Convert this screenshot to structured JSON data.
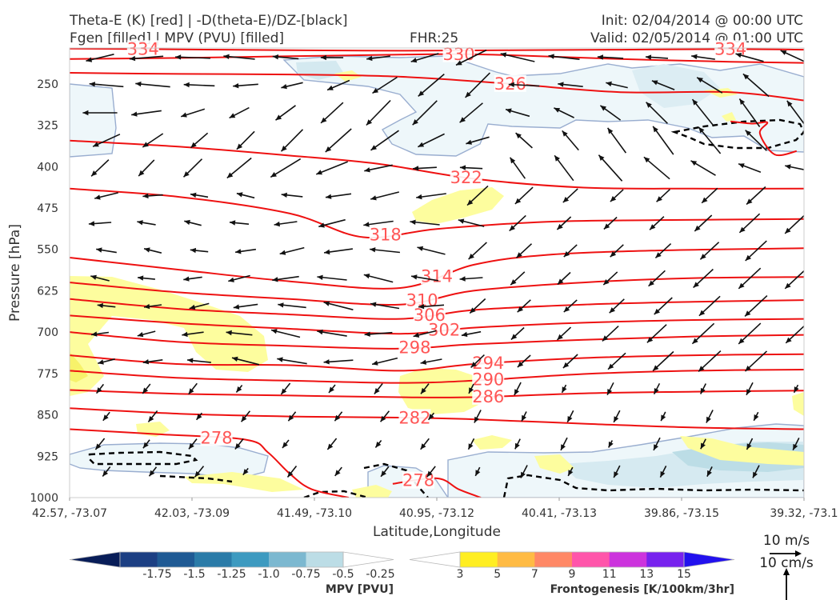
{
  "header": {
    "title_line1": "Theta-E (K) [red] | -D(theta-E)/DZ-[black]",
    "title_line2": "Fgen [filled] | MPV (PVU) [filled]",
    "fhr": "FHR:25",
    "init": "Init: 02/04/2014 @ 00:00 UTC",
    "valid": "Valid: 02/05/2014 @ 01:00 UTC"
  },
  "chart_data": {
    "type": "cross-section",
    "xlabel": "Latitude,Longitude",
    "ylabel": "Pressure [hPa]",
    "x_ticks": [
      "42.57, -73.07",
      "42.03, -73.09",
      "41.49, -73.10",
      "40.95, -73.12",
      "40.41, -73.13",
      "39.86, -73.15",
      "39.32, -73.1"
    ],
    "y_ticks": [
      250,
      325,
      400,
      475,
      550,
      625,
      700,
      775,
      850,
      925,
      1000
    ],
    "ylim": [
      1000,
      185
    ],
    "y_scale": "pressure (inverted)",
    "grid": false,
    "theta_e_contours": [
      {
        "label": "334",
        "points": [
          [
            0,
            186
          ],
          [
            0.1,
            187
          ],
          [
            0.3,
            189
          ],
          [
            0.45,
            190
          ],
          [
            0.6,
            189
          ],
          [
            0.75,
            188
          ],
          [
            0.9,
            187
          ],
          [
            1,
            188
          ]
        ]
      },
      {
        "label": "330",
        "points": [
          [
            0,
            205
          ],
          [
            0.15,
            203
          ],
          [
            0.3,
            200
          ],
          [
            0.45,
            197
          ],
          [
            0.52,
            196
          ],
          [
            0.6,
            198
          ],
          [
            0.75,
            205
          ],
          [
            0.9,
            210
          ],
          [
            1,
            212
          ]
        ]
      },
      {
        "label": "326",
        "points": [
          [
            0,
            230
          ],
          [
            0.15,
            232
          ],
          [
            0.3,
            233
          ],
          [
            0.45,
            237
          ],
          [
            0.6,
            250
          ],
          [
            0.75,
            265
          ],
          [
            0.9,
            265
          ],
          [
            1,
            280
          ]
        ]
      },
      {
        "label": "322",
        "points": [
          [
            0,
            353
          ],
          [
            0.15,
            364
          ],
          [
            0.3,
            380
          ],
          [
            0.42,
            395
          ],
          [
            0.55,
            422
          ],
          [
            0.7,
            438
          ],
          [
            0.85,
            440
          ],
          [
            1,
            440
          ]
        ]
      },
      {
        "label": "318",
        "points": [
          [
            0,
            440
          ],
          [
            0.15,
            455
          ],
          [
            0.3,
            485
          ],
          [
            0.4,
            528
          ],
          [
            0.5,
            513
          ],
          [
            0.65,
            500
          ],
          [
            0.8,
            497
          ],
          [
            1,
            495
          ]
        ]
      },
      {
        "label": "314",
        "points": [
          [
            0,
            565
          ],
          [
            0.15,
            587
          ],
          [
            0.3,
            608
          ],
          [
            0.45,
            620
          ],
          [
            0.55,
            578
          ],
          [
            0.65,
            560
          ],
          [
            0.8,
            552
          ],
          [
            1,
            548
          ]
        ]
      },
      {
        "label": "310",
        "points": [
          [
            0,
            610
          ],
          [
            0.15,
            628
          ],
          [
            0.3,
            640
          ],
          [
            0.45,
            650
          ],
          [
            0.55,
            625
          ],
          [
            0.7,
            610
          ],
          [
            0.85,
            602
          ],
          [
            1,
            600
          ]
        ]
      },
      {
        "label": "306",
        "points": [
          [
            0,
            640
          ],
          [
            0.15,
            658
          ],
          [
            0.3,
            668
          ],
          [
            0.45,
            676
          ],
          [
            0.55,
            660
          ],
          [
            0.7,
            650
          ],
          [
            0.85,
            645
          ],
          [
            1,
            642
          ]
        ]
      },
      {
        "label": "302",
        "points": [
          [
            0,
            670
          ],
          [
            0.15,
            684
          ],
          [
            0.3,
            694
          ],
          [
            0.45,
            703
          ],
          [
            0.55,
            692
          ],
          [
            0.7,
            683
          ],
          [
            0.85,
            678
          ],
          [
            1,
            676
          ]
        ]
      },
      {
        "label": "298",
        "points": [
          [
            0,
            700
          ],
          [
            0.15,
            718
          ],
          [
            0.3,
            725
          ],
          [
            0.45,
            730
          ],
          [
            0.55,
            722
          ],
          [
            0.7,
            714
          ],
          [
            0.85,
            708
          ],
          [
            1,
            705
          ]
        ]
      },
      {
        "label": "294",
        "points": [
          [
            0,
            742
          ],
          [
            0.15,
            758
          ],
          [
            0.3,
            760
          ],
          [
            0.45,
            770
          ],
          [
            0.55,
            758
          ],
          [
            0.7,
            747
          ],
          [
            0.85,
            742
          ],
          [
            1,
            740
          ]
        ]
      },
      {
        "label": "290",
        "points": [
          [
            0,
            770
          ],
          [
            0.15,
            783
          ],
          [
            0.3,
            788
          ],
          [
            0.45,
            792
          ],
          [
            0.55,
            788
          ],
          [
            0.7,
            776
          ],
          [
            0.85,
            770
          ],
          [
            1,
            768
          ]
        ]
      },
      {
        "label": "286",
        "points": [
          [
            0,
            805
          ],
          [
            0.15,
            812
          ],
          [
            0.3,
            815
          ],
          [
            0.45,
            818
          ],
          [
            0.55,
            818
          ],
          [
            0.7,
            811
          ],
          [
            0.85,
            808
          ],
          [
            1,
            806
          ]
        ]
      },
      {
        "label": "282",
        "points": [
          [
            0,
            838
          ],
          [
            0.15,
            848
          ],
          [
            0.3,
            853
          ],
          [
            0.45,
            855
          ],
          [
            0.55,
            858
          ],
          [
            0.7,
            866
          ],
          [
            0.85,
            873
          ],
          [
            1,
            876
          ]
        ]
      },
      {
        "label": "278",
        "points": [
          [
            0,
            876
          ],
          [
            0.12,
            885
          ],
          [
            0.24,
            895
          ],
          [
            0.27,
            918
          ],
          [
            0.3,
            957
          ],
          [
            0.33,
            985
          ],
          [
            0.38,
            1000
          ]
        ]
      },
      {
        "label": "278",
        "points": [
          [
            0.44,
            975
          ],
          [
            0.5,
            965
          ],
          [
            0.53,
            985
          ],
          [
            0.56,
            1000
          ]
        ]
      },
      {
        "label": "",
        "points": [
          [
            0.9,
            318
          ],
          [
            0.93,
            322
          ],
          [
            0.95,
            320
          ],
          [
            0.94,
            340
          ],
          [
            0.96,
            378
          ],
          [
            0.99,
            372
          ]
        ]
      }
    ],
    "mpv_colorbar": {
      "label": "MPV [PVU]",
      "ticks": [
        "-1.75",
        "-1.5",
        "-1.25",
        "-1.0",
        "-0.75",
        "-0.5",
        "-0.25"
      ],
      "colors": [
        "#081d58",
        "#1c3f83",
        "#1f5a94",
        "#2a7ba8",
        "#3d9ac0",
        "#7cb8d0",
        "#bcdde6",
        "#ffffff"
      ]
    },
    "fgen_colorbar": {
      "label": "Frontogenesis [K/100km/3hr]",
      "ticks": [
        "3",
        "5",
        "7",
        "9",
        "11",
        "13",
        "15"
      ],
      "colors": [
        "#ffffff",
        "#ffee22",
        "#ffbb44",
        "#ff8866",
        "#ff55aa",
        "#cc33dd",
        "#7722ee",
        "#2211ee"
      ]
    },
    "wind_reference": {
      "label_horizontal": "10 m/s",
      "label_vertical": "10 cm/s"
    }
  }
}
